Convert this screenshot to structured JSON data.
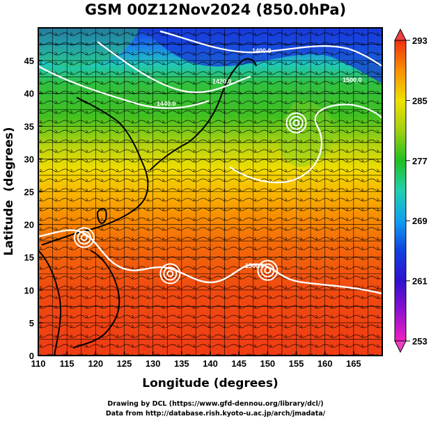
{
  "title": "GSM 00Z12Nov2024 (850.0hPa)",
  "chart_data": {
    "type": "heatmap",
    "title": "GSM 00Z12Nov2024 (850.0hPa)",
    "xlabel": "Longitude (degrees)",
    "ylabel": "Latitude  (degrees)",
    "x_ticks": [
      110,
      115,
      120,
      125,
      130,
      135,
      140,
      145,
      150,
      155,
      160,
      165
    ],
    "y_ticks": [
      0,
      5,
      10,
      15,
      20,
      25,
      30,
      35,
      40,
      45
    ],
    "xlim": [
      110,
      170
    ],
    "ylim": [
      0,
      50
    ],
    "grid": true,
    "colorbar": {
      "ticks": [
        253,
        261,
        269,
        277,
        285,
        293
      ],
      "range": [
        253,
        293
      ],
      "colors": [
        "#e000c0",
        "#7010d0",
        "#1020d8",
        "#10a0f0",
        "#20d0b0",
        "#20c020",
        "#90d010",
        "#f0e000",
        "#f8a000",
        "#f04010"
      ]
    },
    "contour_labels": [
      "1400.0",
      "1420.0",
      "1440.0",
      "1500.0",
      "1500.0"
    ],
    "lows": [
      {
        "name": "low-west",
        "lon": 118,
        "lat": 18
      },
      {
        "name": "low-mid",
        "lon": 133,
        "lat": 12.5
      },
      {
        "name": "low-east",
        "lon": 150,
        "lat": 13
      },
      {
        "name": "low-north",
        "lon": 155,
        "lat": 35.5
      }
    ]
  },
  "credits": {
    "line1": "Drawing by DCL (https://www.gfd-dennou.org/library/dcl/)",
    "line2": "Data from http://database.rish.kyoto-u.ac.jp/arch/jmadata/"
  }
}
